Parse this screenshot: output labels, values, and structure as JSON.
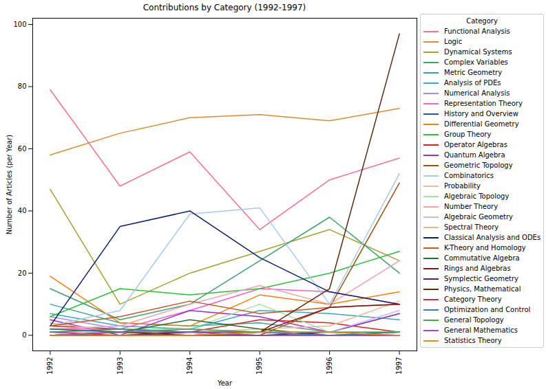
{
  "chart_data": {
    "type": "line",
    "title": "Contributions by Category (1992-1997)",
    "x_label": "Year",
    "y_label": "Number of Articles (per Year)",
    "legend_title": "Category",
    "legend": "right",
    "x": [
      1992,
      1993,
      1994,
      1995,
      1996,
      1997
    ],
    "xlim": [
      1991.75,
      1997.25
    ],
    "xticks": [
      1992,
      1993,
      1994,
      1995,
      1996,
      1997
    ],
    "ylim": [
      -5,
      102
    ],
    "yticks": [
      0,
      20,
      40,
      60,
      80,
      100
    ],
    "series": [
      {
        "name": "Functional Analysis",
        "color": "#f77189",
        "values": [
          79,
          48,
          59,
          34,
          50,
          57
        ]
      },
      {
        "name": "Logic",
        "color": "#d58c32",
        "values": [
          58,
          65,
          70,
          71,
          69,
          73
        ]
      },
      {
        "name": "Dynamical Systems",
        "color": "#a4a031",
        "values": [
          47,
          10,
          20,
          27,
          34,
          24
        ]
      },
      {
        "name": "Complex Variables",
        "color": "#3ba36b",
        "values": [
          15,
          5,
          10,
          24,
          38,
          20
        ]
      },
      {
        "name": "Metric Geometry",
        "color": "#3aa5a1",
        "values": [
          10,
          4,
          3,
          4,
          1,
          7
        ]
      },
      {
        "name": "Analysis of PDEs",
        "color": "#39a7c5",
        "values": [
          7,
          3,
          2,
          8,
          7,
          5
        ]
      },
      {
        "name": "Numerical Analysis",
        "color": "#a48cf4",
        "values": [
          6,
          2,
          1,
          1,
          0,
          1
        ]
      },
      {
        "name": "Representation Theory",
        "color": "#f45fcf",
        "values": [
          2,
          2,
          8,
          15,
          14,
          10
        ]
      },
      {
        "name": "History and Overview",
        "color": "#2a52be",
        "values": [
          0,
          1,
          0,
          0,
          0,
          0
        ]
      },
      {
        "name": "Differential Geometry",
        "color": "#f57f0a",
        "values": [
          19,
          4,
          3,
          13,
          10,
          14
        ]
      },
      {
        "name": "Group Theory",
        "color": "#2ebd3c",
        "values": [
          6,
          15,
          13,
          15,
          20,
          27
        ]
      },
      {
        "name": "Operator Algebras",
        "color": "#e0201b",
        "values": [
          3,
          2,
          1,
          5,
          4,
          1
        ]
      },
      {
        "name": "Quantum Algebra",
        "color": "#9b2bd4",
        "values": [
          5,
          0,
          8,
          6,
          1,
          7
        ]
      },
      {
        "name": "Geometric Topology",
        "color": "#a0520d",
        "values": [
          0,
          0,
          0,
          0,
          9,
          49
        ]
      },
      {
        "name": "Combinatorics",
        "color": "#a6c8ee",
        "values": [
          3,
          8,
          39,
          41,
          10,
          52
        ]
      },
      {
        "name": "Probability",
        "color": "#f7b79a",
        "values": [
          1,
          1,
          1,
          2,
          3,
          11
        ]
      },
      {
        "name": "Algebraic Topology",
        "color": "#a4e0a0",
        "values": [
          1,
          2,
          2,
          10,
          1,
          1
        ]
      },
      {
        "name": "Number Theory",
        "color": "#f7a0a8",
        "values": [
          2,
          3,
          10,
          16,
          10,
          24
        ]
      },
      {
        "name": "Algebraic Geometry",
        "color": "#c9b8f0",
        "values": [
          1,
          1,
          2,
          1,
          1,
          8
        ]
      },
      {
        "name": "Spectral Theory",
        "color": "#e2b88f",
        "values": [
          4,
          1,
          0,
          1,
          1,
          1
        ]
      },
      {
        "name": "Classical Analysis and ODEs",
        "color": "#0b1f6e",
        "values": [
          3,
          35,
          40,
          25,
          14,
          10
        ]
      },
      {
        "name": "K-Theory and Homology",
        "color": "#c8552a",
        "values": [
          3,
          6,
          11,
          7,
          9,
          10
        ]
      },
      {
        "name": "Commutative Algebra",
        "color": "#23702a",
        "values": [
          2,
          1,
          5,
          2,
          0,
          1
        ]
      },
      {
        "name": "Rings and Algebras",
        "color": "#8b1010",
        "values": [
          0,
          0,
          1,
          1,
          9,
          10
        ]
      },
      {
        "name": "Symplectic Geometry",
        "color": "#5a1f6e",
        "values": [
          0,
          0,
          1,
          0,
          1,
          0
        ]
      },
      {
        "name": "Physics, Mathematical",
        "color": "#5c2a0c",
        "values": [
          0,
          1,
          0,
          1,
          15,
          97
        ]
      },
      {
        "name": "Category Theory",
        "color": "#d0303a",
        "values": [
          1,
          0,
          0,
          1,
          0,
          0
        ]
      },
      {
        "name": "Optimization and Control",
        "color": "#3a7cae",
        "values": [
          1,
          2,
          1,
          1,
          0,
          1
        ]
      },
      {
        "name": "General Topology",
        "color": "#3faa3f",
        "values": [
          0,
          1,
          2,
          1,
          1,
          1
        ]
      },
      {
        "name": "General Mathematics",
        "color": "#9a4cc0",
        "values": [
          0,
          1,
          1,
          0,
          0,
          0
        ]
      },
      {
        "name": "Statistics Theory",
        "color": "#f08c0e",
        "values": [
          0,
          0,
          0,
          1,
          1,
          0
        ]
      }
    ]
  }
}
